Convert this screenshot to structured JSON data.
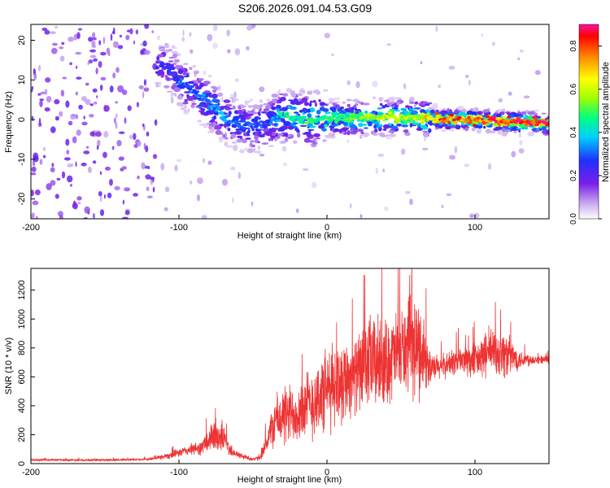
{
  "title": "S206.2026.091.04.53.G09",
  "colors": {
    "snr_line": "#ee3333",
    "axis": "#000000"
  },
  "chart_data": [
    {
      "type": "heatmap",
      "name": "spectrogram",
      "xlabel": "Height of straight line (km)",
      "ylabel": "Frequency (Hz)",
      "xlim": [
        -200,
        150
      ],
      "ylim": [
        -25,
        24
      ],
      "xticks": [
        -200,
        -100,
        0,
        100
      ],
      "yticks": [
        20,
        10,
        0,
        -10,
        -20
      ],
      "colorbar": {
        "label": "Normalized spectral amplitude",
        "range": [
          0,
          0.9
        ],
        "ticks": [
          0.0,
          0.2,
          0.4,
          0.6,
          0.8
        ]
      },
      "ridge": {
        "description": "dominant frequency vs height",
        "x": [
          -110,
          -100,
          -90,
          -80,
          -70,
          -60,
          -50,
          -40,
          -30,
          -20,
          -10,
          0,
          20,
          40,
          60,
          80,
          100,
          120,
          150
        ],
        "freq": [
          14,
          10,
          7,
          4,
          1,
          -1,
          -2,
          -1,
          1,
          0.5,
          0,
          0,
          0.5,
          0.5,
          0.5,
          0,
          0,
          -0.5,
          -1
        ],
        "amplitude": [
          0.25,
          0.3,
          0.3,
          0.35,
          0.35,
          0.3,
          0.3,
          0.3,
          0.45,
          0.45,
          0.5,
          0.45,
          0.55,
          0.6,
          0.6,
          0.8,
          0.8,
          0.85,
          0.9
        ]
      }
    },
    {
      "type": "line",
      "name": "snr",
      "xlabel": "Height of straight line (km)",
      "ylabel": "SNR (10 * v/v)",
      "xlim": [
        -200,
        150
      ],
      "ylim": [
        0,
        1350
      ],
      "xticks": [
        -200,
        -100,
        0,
        100
      ],
      "yticks": [
        0,
        200,
        400,
        600,
        800,
        1000,
        1200
      ],
      "envelope": {
        "x": [
          -200,
          -150,
          -120,
          -105,
          -95,
          -85,
          -75,
          -70,
          -65,
          -60,
          -50,
          -45,
          -35,
          -30,
          -20,
          -10,
          0,
          10,
          20,
          30,
          40,
          50,
          60,
          65,
          70,
          80,
          90,
          100,
          110,
          120,
          130,
          140,
          150
        ],
        "mean": [
          25,
          25,
          30,
          60,
          90,
          110,
          200,
          180,
          90,
          60,
          30,
          40,
          300,
          320,
          360,
          420,
          500,
          580,
          620,
          700,
          700,
          780,
          800,
          780,
          650,
          680,
          720,
          700,
          780,
          760,
          720,
          720,
          720
        ],
        "spread": [
          8,
          10,
          10,
          30,
          40,
          60,
          150,
          120,
          50,
          30,
          15,
          20,
          200,
          250,
          250,
          300,
          350,
          350,
          300,
          400,
          350,
          350,
          420,
          350,
          120,
          100,
          120,
          150,
          200,
          200,
          80,
          40,
          30
        ]
      }
    }
  ]
}
